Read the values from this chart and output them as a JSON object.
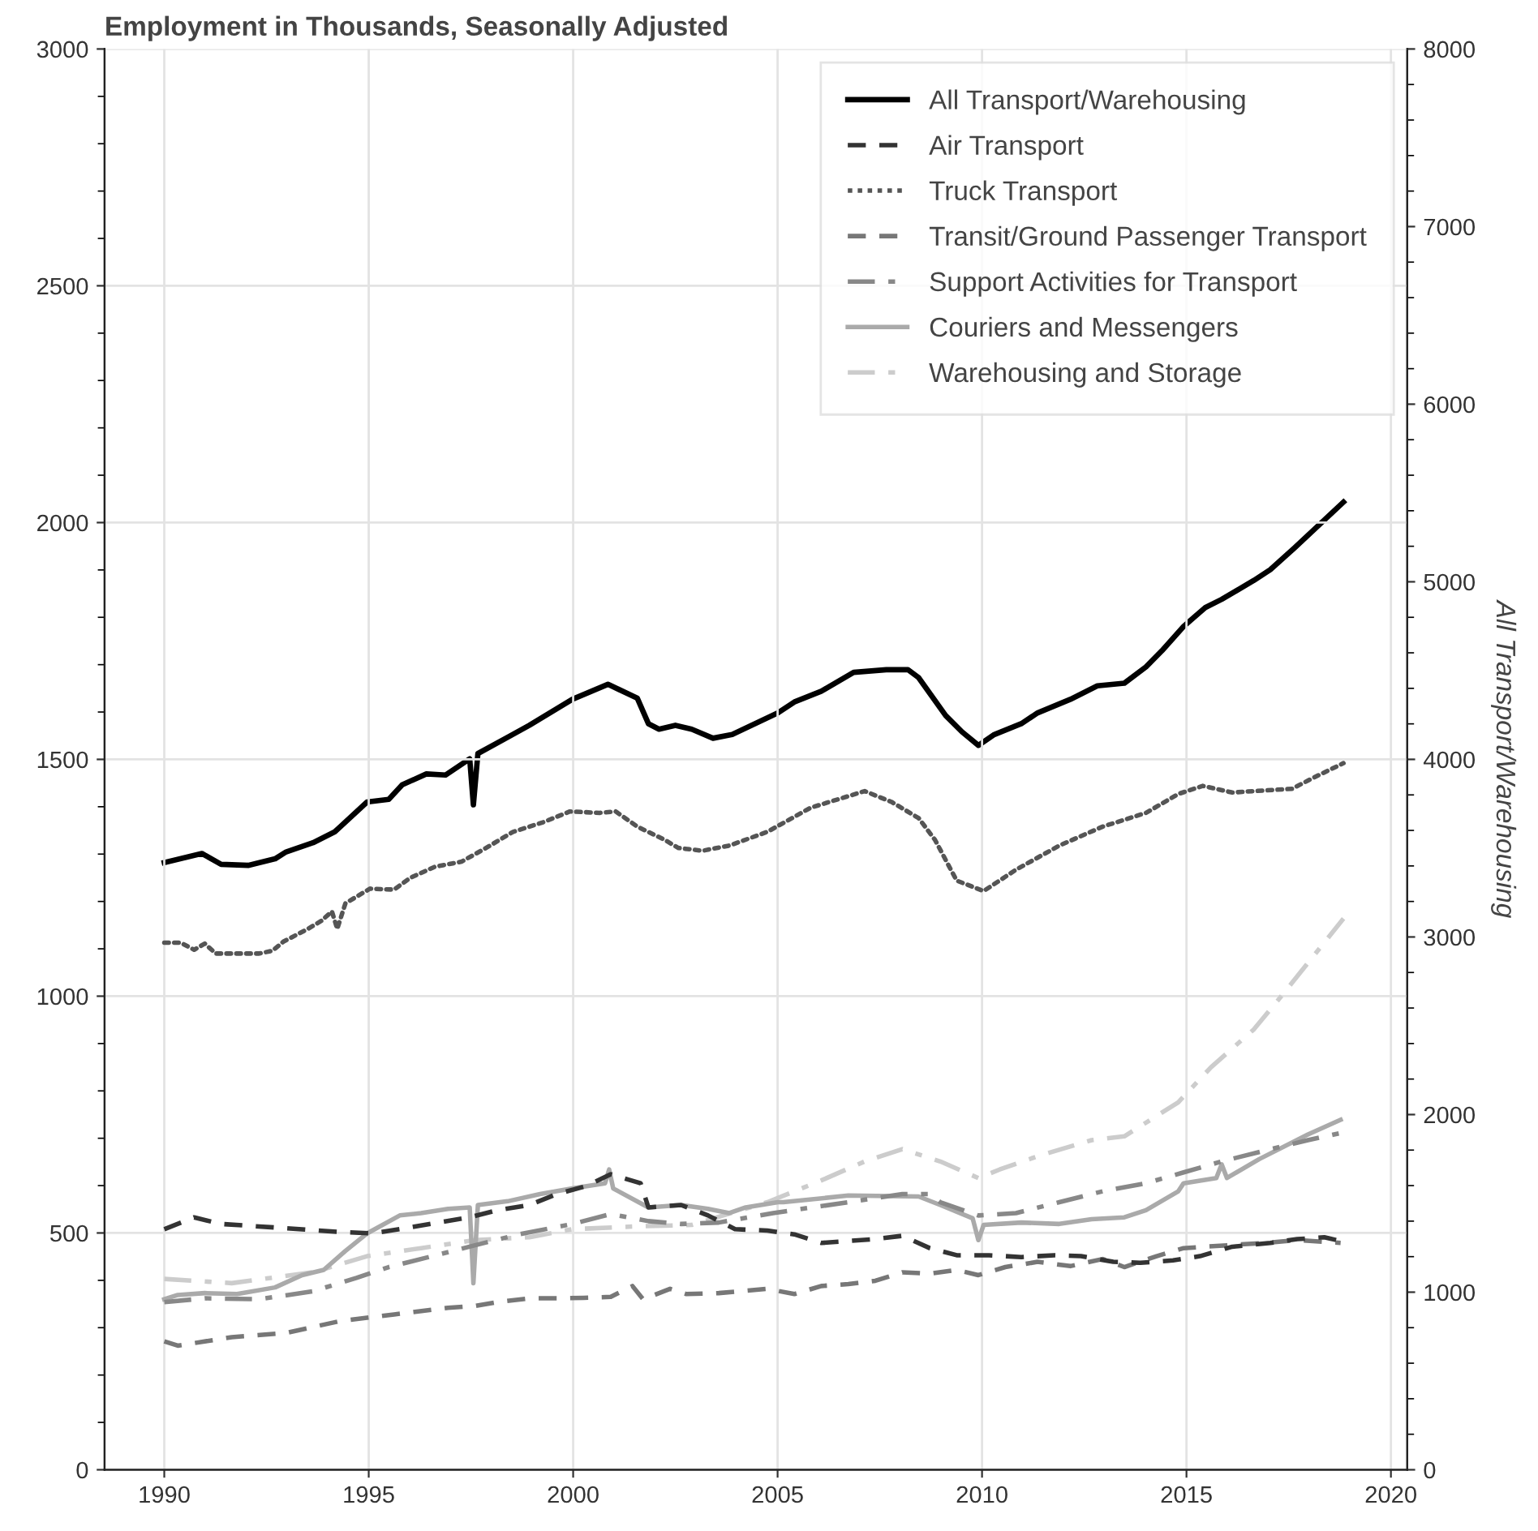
{
  "chart_data": {
    "type": "line",
    "title": "Employment in Thousands, Seasonally Adjusted",
    "y2label": "All Transport/Warehousing",
    "xlim": [
      1988.54,
      2020.4
    ],
    "xticks": [
      1990,
      1995,
      2000,
      2005,
      2010,
      2015,
      2020
    ],
    "ylim": [
      0,
      3000
    ],
    "yticks": [
      0,
      500,
      1000,
      1500,
      2000,
      2500,
      3000
    ],
    "y2lim": [
      0,
      8000
    ],
    "y2ticks": [
      0,
      1000,
      2000,
      3000,
      4000,
      5000,
      6000,
      7000,
      8000
    ],
    "grid": true,
    "legend": "top right",
    "series": [
      {
        "name": "All Transport/Warehousing",
        "color": "#000000",
        "line_style": "solid",
        "axis": "y2",
        "x": [
          1990.0,
          1990.92,
          1991.39,
          1992.05,
          1992.71,
          1992.98,
          1993.64,
          1994.17,
          1994.96,
          1995.49,
          1995.82,
          1996.41,
          1996.88,
          1997.47,
          1997.56,
          1997.67,
          1998.4,
          1998.93,
          1999.98,
          2000.85,
          2001.57,
          2001.84,
          2002.1,
          2002.5,
          2002.9,
          2003.42,
          2003.89,
          2005.01,
          2005.41,
          2006.07,
          2006.86,
          2007.66,
          2008.19,
          2008.45,
          2009.11,
          2009.51,
          2009.91,
          2010.3,
          2010.96,
          2011.36,
          2012.16,
          2012.82,
          2013.48,
          2014.01,
          2014.4,
          2014.93,
          2015.46,
          2015.86,
          2016.65,
          2017.05,
          2017.64,
          2018.84
        ],
        "values": [
          3419,
          3470,
          3409,
          3403,
          3440,
          3479,
          3531,
          3592,
          3760,
          3775,
          3857,
          3918,
          3912,
          4003,
          3744,
          4033,
          4125,
          4192,
          4338,
          4423,
          4344,
          4201,
          4170,
          4192,
          4170,
          4119,
          4140,
          4262,
          4323,
          4384,
          4490,
          4505,
          4505,
          4460,
          4247,
          4155,
          4079,
          4140,
          4201,
          4262,
          4338,
          4414,
          4429,
          4521,
          4612,
          4749,
          4855,
          4901,
          5008,
          5068,
          5190,
          5449
        ]
      },
      {
        "name": "Air Transport",
        "color": "#333333",
        "line_style": "dashed",
        "x": [
          1990.0,
          1990.73,
          1991.39,
          1992.98,
          1994.3,
          1995.1,
          1995.76,
          1996.69,
          1997.47,
          1998.14,
          1998.93,
          1999.6,
          2000.32,
          2000.92,
          2001.65,
          2001.84,
          2002.64,
          2003.3,
          2003.96,
          2004.75,
          2005.41,
          2006.07,
          2006.73,
          2007.39,
          2008.05,
          2008.72,
          2009.38,
          2010.17,
          2010.96,
          2011.76,
          2012.42,
          2013.21,
          2013.87,
          2014.67,
          2015.33,
          2016.12,
          2017.05,
          2017.71,
          2018.37,
          2018.77
        ],
        "values": [
          508,
          533,
          519,
          510,
          502,
          499,
          508,
          522,
          533,
          548,
          559,
          582,
          599,
          624,
          605,
          554,
          559,
          537,
          508,
          505,
          497,
          479,
          483,
          487,
          494,
          468,
          453,
          453,
          449,
          453,
          451,
          439,
          437,
          442,
          451,
          471,
          479,
          487,
          491,
          483
        ]
      },
      {
        "name": "Truck Transport",
        "color": "#555555",
        "line_style": "dotted",
        "x": [
          1990.0,
          1990.4,
          1990.73,
          1990.99,
          1991.26,
          1992.32,
          1992.65,
          1992.91,
          1993.51,
          1993.84,
          1994.1,
          1994.23,
          1994.43,
          1995.03,
          1995.62,
          1996.02,
          1996.61,
          1997.27,
          1997.87,
          1998.53,
          1999.26,
          1999.92,
          2000.65,
          2001.04,
          2001.57,
          2002.24,
          2002.57,
          2003.16,
          2003.82,
          2004.75,
          2005.81,
          2007.13,
          2007.79,
          2008.45,
          2008.85,
          2009.38,
          2010.04,
          2010.83,
          2011.89,
          2012.95,
          2014.01,
          2014.8,
          2015.4,
          2016.12,
          2016.65,
          2017.58,
          2018.24,
          2018.84
        ],
        "values": [
          1113,
          1113,
          1098,
          1111,
          1090,
          1090,
          1096,
          1115,
          1142,
          1159,
          1179,
          1142,
          1196,
          1227,
          1225,
          1250,
          1273,
          1284,
          1313,
          1347,
          1367,
          1390,
          1387,
          1390,
          1358,
          1330,
          1313,
          1307,
          1318,
          1347,
          1398,
          1433,
          1410,
          1376,
          1330,
          1244,
          1222,
          1267,
          1318,
          1358,
          1387,
          1427,
          1444,
          1430,
          1433,
          1438,
          1467,
          1492
        ]
      },
      {
        "name": "Transit/Ground Passenger Transport",
        "color": "#777777",
        "line_style": "dashed",
        "x": [
          1990.0,
          1990.33,
          1991.65,
          1992.98,
          1994.3,
          1995.62,
          1996.94,
          1997.6,
          1998.14,
          1998.93,
          1999.6,
          2000.26,
          2000.92,
          2001.45,
          2001.71,
          2002.37,
          2002.77,
          2003.56,
          2004.75,
          2005.41,
          2006.07,
          2006.73,
          2007.39,
          2008.05,
          2008.72,
          2009.38,
          2009.91,
          2010.57,
          2011.36,
          2012.16,
          2012.95,
          2013.48,
          2014.27,
          2014.93,
          2015.99,
          2016.92,
          2017.71,
          2018.77
        ],
        "values": [
          271,
          262,
          280,
          289,
          314,
          328,
          342,
          346,
          354,
          362,
          362,
          363,
          365,
          388,
          360,
          382,
          371,
          373,
          382,
          371,
          388,
          392,
          399,
          417,
          414,
          422,
          411,
          428,
          439,
          430,
          445,
          428,
          451,
          468,
          474,
          479,
          485,
          479
        ]
      },
      {
        "name": "Support Activities for Transport",
        "color": "#888888",
        "line_style": "dashdot",
        "x": [
          1990.0,
          1990.99,
          1992.32,
          1993.64,
          1994.7,
          1995.49,
          1996.55,
          1997.6,
          1998.66,
          1999.98,
          2000.92,
          2001.84,
          2002.64,
          2003.56,
          2004.89,
          2006.73,
          2008.05,
          2008.72,
          2008.98,
          2009.91,
          2010.83,
          2011.89,
          2012.95,
          2014.01,
          2014.93,
          2015.86,
          2016.92,
          2017.97,
          2018.77
        ],
        "values": [
          354,
          362,
          360,
          377,
          405,
          428,
          451,
          474,
          497,
          519,
          540,
          525,
          519,
          522,
          542,
          565,
          582,
          582,
          565,
          537,
          542,
          565,
          588,
          605,
          628,
          651,
          674,
          696,
          711
        ]
      },
      {
        "name": "Couriers and Messengers",
        "color": "#aaaaaa",
        "line_style": "solid",
        "x": [
          1990.0,
          1990.33,
          1990.99,
          1991.78,
          1992.71,
          1993.37,
          1993.9,
          1994.43,
          1994.96,
          1995.76,
          1996.28,
          1996.94,
          1997.47,
          1997.56,
          1997.67,
          1998.4,
          1999.19,
          1999.98,
          2000.78,
          2000.88,
          2000.98,
          2001.84,
          2002.64,
          2003.3,
          2003.82,
          2004.22,
          2005.01,
          2005.14,
          2006.73,
          2008.45,
          2008.98,
          2009.77,
          2009.91,
          2010.04,
          2010.96,
          2011.89,
          2012.68,
          2013.48,
          2014.01,
          2014.8,
          2014.93,
          2015.73,
          2015.86,
          2015.99,
          2016.78,
          2017.97,
          2018.77
        ],
        "values": [
          360,
          369,
          373,
          371,
          385,
          411,
          422,
          462,
          499,
          537,
          542,
          551,
          554,
          394,
          559,
          567,
          582,
          594,
          605,
          634,
          594,
          554,
          559,
          551,
          542,
          554,
          565,
          565,
          579,
          577,
          559,
          531,
          485,
          517,
          522,
          519,
          529,
          533,
          548,
          588,
          605,
          616,
          645,
          616,
          656,
          708,
          739
        ]
      },
      {
        "name": "Warehousing and Storage",
        "color": "#cccccc",
        "line_style": "dashdot",
        "x": [
          1990.0,
          1991.65,
          1993.64,
          1994.96,
          1996.28,
          1997.6,
          1998.93,
          1999.98,
          2001.57,
          2002.9,
          2004.75,
          2006.07,
          2007.13,
          2008.05,
          2008.98,
          2009.91,
          2010.43,
          2011.36,
          2012.68,
          2013.48,
          2014.8,
          2015.6,
          2016.65,
          2017.31,
          2018.84
        ],
        "values": [
          403,
          394,
          417,
          451,
          468,
          485,
          491,
          508,
          514,
          517,
          565,
          611,
          651,
          677,
          651,
          616,
          634,
          662,
          696,
          704,
          776,
          850,
          930,
          999,
          1164
        ]
      }
    ]
  }
}
